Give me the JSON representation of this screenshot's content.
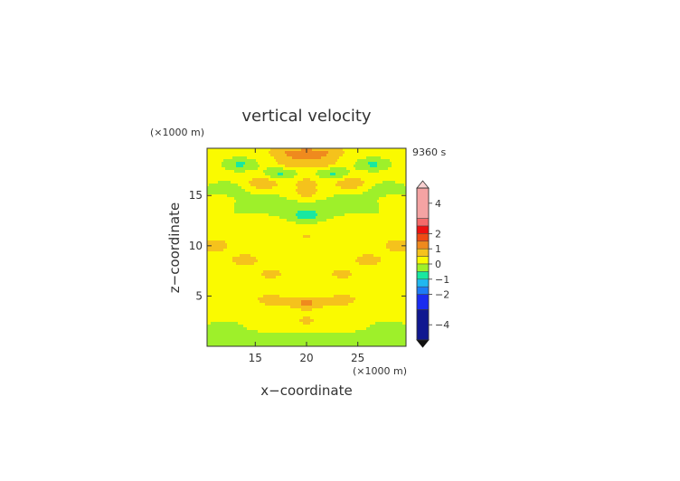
{
  "chart_data": {
    "type": "heatmap",
    "title": "vertical velocity",
    "time_label": "9360 s",
    "xlabel": "x−coordinate",
    "ylabel": "z−coordinate",
    "x_unit": "(×1000 m)",
    "y_unit": "(×1000 m)",
    "xlim": [
      10.3,
      29.7
    ],
    "ylim": [
      0,
      19.7
    ],
    "x_ticks": [
      15,
      20,
      25
    ],
    "y_ticks": [
      5,
      10,
      15
    ],
    "colorbar": {
      "ticks": [
        4,
        2,
        1,
        0,
        -1,
        -2,
        -4
      ],
      "tick_labels": [
        "4",
        "2",
        "1",
        "0",
        "−1",
        "−2",
        "−4"
      ],
      "levels": [
        {
          "lo": 3.0,
          "hi": 5.0,
          "color": "#f4a3a3"
        },
        {
          "lo": 2.5,
          "hi": 3.0,
          "color": "#f46a6a"
        },
        {
          "lo": 2.0,
          "hi": 2.5,
          "color": "#ee1010"
        },
        {
          "lo": 1.5,
          "hi": 2.0,
          "color": "#ee4a14"
        },
        {
          "lo": 1.0,
          "hi": 1.5,
          "color": "#ef8a1e"
        },
        {
          "lo": 0.5,
          "hi": 1.0,
          "color": "#f5c21c"
        },
        {
          "lo": 0.0,
          "hi": 0.5,
          "color": "#fafa00"
        },
        {
          "lo": -0.5,
          "hi": 0.0,
          "color": "#9ef02a"
        },
        {
          "lo": -1.0,
          "hi": -0.5,
          "color": "#18e8a0"
        },
        {
          "lo": -1.5,
          "hi": -1.0,
          "color": "#20b8f0"
        },
        {
          "lo": -2.0,
          "hi": -1.5,
          "color": "#1d7cf5"
        },
        {
          "lo": -3.0,
          "hi": -2.0,
          "color": "#1a2cf0"
        },
        {
          "lo": -5.0,
          "hi": -3.0,
          "color": "#101890"
        }
      ]
    },
    "features": [
      {
        "x": 20.0,
        "z": 19.2,
        "w": 0.9
      },
      {
        "x": 17.8,
        "z": 19.3,
        "w": 0.6
      },
      {
        "x": 22.2,
        "z": 19.3,
        "w": 0.6
      },
      {
        "x": 13.5,
        "z": 18.1,
        "w": -0.8
      },
      {
        "x": 26.5,
        "z": 18.1,
        "w": -0.8
      },
      {
        "x": 18.5,
        "z": 18.2,
        "w": 0.6
      },
      {
        "x": 21.5,
        "z": 18.2,
        "w": 0.6
      },
      {
        "x": 17.5,
        "z": 17.2,
        "w": -0.8
      },
      {
        "x": 22.5,
        "z": 17.2,
        "w": -0.8
      },
      {
        "x": 15.8,
        "z": 16.2,
        "w": 0.8
      },
      {
        "x": 24.2,
        "z": 16.2,
        "w": 0.8
      },
      {
        "x": 20.0,
        "z": 16.3,
        "w": 0.5
      },
      {
        "x": 12.0,
        "z": 15.7,
        "w": -0.6
      },
      {
        "x": 28.0,
        "z": 15.7,
        "w": -0.6
      },
      {
        "x": 20.0,
        "z": 15.2,
        "w": 0.7
      },
      {
        "x": 11.2,
        "z": 14.3,
        "w": 0.5
      },
      {
        "x": 28.8,
        "z": 14.3,
        "w": 0.5
      },
      {
        "x": 20.0,
        "z": 13.0,
        "w": -0.8
      },
      {
        "x": 20.0,
        "z": 11.0,
        "w": 0.3
      },
      {
        "x": 10.8,
        "z": 10.0,
        "w": 0.7
      },
      {
        "x": 29.2,
        "z": 10.0,
        "w": 0.7
      },
      {
        "x": 14.0,
        "z": 8.6,
        "w": 0.5
      },
      {
        "x": 26.0,
        "z": 8.6,
        "w": 0.5
      },
      {
        "x": 16.5,
        "z": 7.2,
        "w": 0.4
      },
      {
        "x": 23.5,
        "z": 7.2,
        "w": 0.4
      },
      {
        "x": 20.0,
        "z": 4.3,
        "w": 0.9
      },
      {
        "x": 16.5,
        "z": 4.6,
        "w": 0.5
      },
      {
        "x": 23.5,
        "z": 4.6,
        "w": 0.5
      },
      {
        "x": 20.0,
        "z": 2.5,
        "w": 0.4
      },
      {
        "x": 12.0,
        "z": 2.0,
        "w": -0.4
      },
      {
        "x": 28.0,
        "z": 2.0,
        "w": -0.4
      }
    ]
  }
}
